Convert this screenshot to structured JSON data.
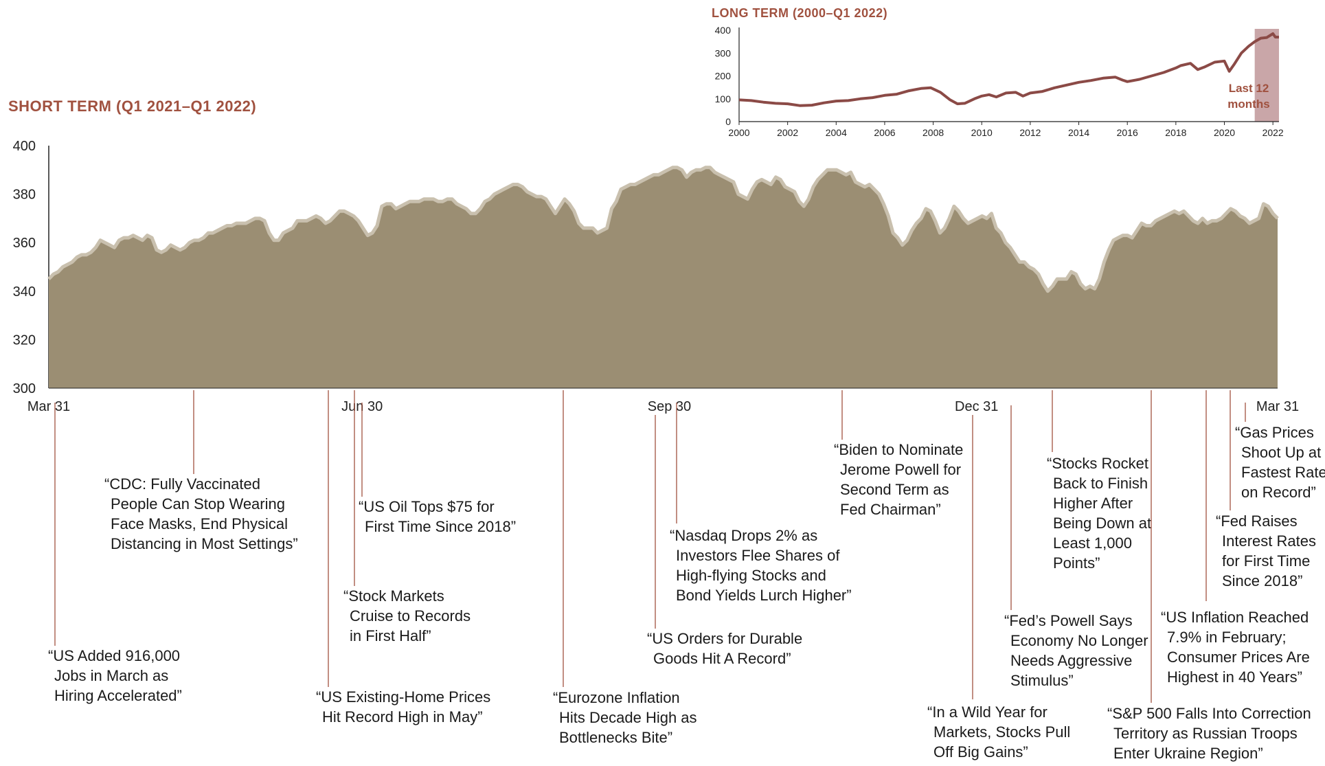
{
  "colors": {
    "area": "#9b8e73",
    "area_edge": "#c9c0ae",
    "line": "#8b4a46",
    "highlight": "#c9a6a8",
    "title": "#a0513f",
    "leader": "#a0513f"
  },
  "chart_data": [
    {
      "type": "area",
      "title": "SHORT TERM (Q1 2021–Q1 2022)",
      "ylim": [
        300,
        400
      ],
      "yticks": [
        300,
        320,
        340,
        360,
        380,
        400
      ],
      "x_labels": [
        "Mar 31",
        "Jun 30",
        "Sep 30",
        "Dec 31",
        "Mar 31"
      ],
      "x_label_pos": [
        0,
        0.255,
        0.505,
        0.755,
        1.0
      ],
      "values": [
        345,
        347,
        348,
        350,
        351,
        352,
        354,
        355,
        355,
        356,
        358,
        361,
        360,
        359,
        358,
        361,
        362,
        362,
        363,
        362,
        361,
        363,
        362,
        357,
        356,
        357,
        359,
        358,
        357,
        358,
        360,
        361,
        361,
        362,
        364,
        364,
        365,
        366,
        367,
        367,
        368,
        368,
        368,
        369,
        370,
        370,
        369,
        364,
        361,
        361,
        364,
        365,
        366,
        369,
        369,
        369,
        370,
        371,
        370,
        368,
        369,
        371,
        373,
        373,
        372,
        371,
        369,
        366,
        363,
        364,
        367,
        375,
        376,
        376,
        374,
        375,
        376,
        377,
        377,
        377,
        378,
        378,
        378,
        377,
        377,
        378,
        378,
        376,
        375,
        374,
        372,
        372,
        374,
        377,
        378,
        380,
        381,
        382,
        383,
        384,
        384,
        383,
        381,
        380,
        379,
        379,
        378,
        375,
        372,
        375,
        378,
        376,
        373,
        368,
        366,
        366,
        366,
        364,
        365,
        366,
        374,
        377,
        382,
        383,
        384,
        384,
        385,
        386,
        387,
        388,
        388,
        389,
        390,
        391,
        391,
        390,
        387,
        389,
        390,
        390,
        391,
        391,
        389,
        388,
        387,
        386,
        385,
        380,
        379,
        378,
        382,
        385,
        386,
        385,
        384,
        387,
        386,
        383,
        382,
        381,
        377,
        375,
        378,
        383,
        386,
        388,
        390,
        390,
        390,
        389,
        388,
        389,
        385,
        384,
        383,
        384,
        382,
        380,
        376,
        371,
        364,
        362,
        359,
        361,
        365,
        368,
        370,
        374,
        373,
        369,
        364,
        366,
        370,
        375,
        373,
        370,
        368,
        369,
        370,
        371,
        370,
        372,
        366,
        364,
        360,
        358,
        355,
        352,
        352,
        350,
        349,
        347,
        343,
        340,
        342,
        345,
        345,
        345,
        348,
        347,
        343,
        341,
        342,
        341,
        345,
        352,
        357,
        361,
        362,
        363,
        363,
        362,
        365,
        368,
        367,
        367,
        369,
        370,
        371,
        372,
        373,
        372,
        373,
        371,
        369,
        368,
        370,
        368,
        369,
        369,
        370,
        372,
        374,
        373,
        371,
        370,
        368,
        369,
        370,
        376,
        375,
        372,
        370
      ]
    },
    {
      "type": "line",
      "title": "LONG TERM (2000–Q1 2022)",
      "ylim": [
        0,
        400
      ],
      "yticks": [
        0,
        100,
        200,
        300,
        400
      ],
      "xlim": [
        2000,
        2022.25
      ],
      "xticks": [
        "2000",
        "2002",
        "2004",
        "2006",
        "2008",
        "2010",
        "2012",
        "2014",
        "2016",
        "2018",
        "2020",
        "2022"
      ],
      "highlight_range": [
        2021.25,
        2022.25
      ],
      "highlight_label": [
        "Last 12",
        "months"
      ],
      "points": [
        [
          2000,
          95
        ],
        [
          2000.5,
          92
        ],
        [
          2001,
          85
        ],
        [
          2001.5,
          80
        ],
        [
          2002,
          78
        ],
        [
          2002.5,
          70
        ],
        [
          2003,
          72
        ],
        [
          2003.5,
          82
        ],
        [
          2004,
          90
        ],
        [
          2004.5,
          92
        ],
        [
          2005,
          100
        ],
        [
          2005.5,
          105
        ],
        [
          2006,
          115
        ],
        [
          2006.5,
          120
        ],
        [
          2007,
          135
        ],
        [
          2007.5,
          145
        ],
        [
          2007.9,
          148
        ],
        [
          2008.3,
          128
        ],
        [
          2008.7,
          95
        ],
        [
          2009,
          78
        ],
        [
          2009.3,
          80
        ],
        [
          2009.7,
          100
        ],
        [
          2010,
          112
        ],
        [
          2010.3,
          118
        ],
        [
          2010.6,
          108
        ],
        [
          2011,
          125
        ],
        [
          2011.4,
          128
        ],
        [
          2011.7,
          112
        ],
        [
          2012,
          125
        ],
        [
          2012.5,
          132
        ],
        [
          2013,
          148
        ],
        [
          2013.5,
          160
        ],
        [
          2014,
          172
        ],
        [
          2014.5,
          180
        ],
        [
          2015,
          190
        ],
        [
          2015.5,
          195
        ],
        [
          2015.8,
          182
        ],
        [
          2016,
          175
        ],
        [
          2016.5,
          185
        ],
        [
          2017,
          200
        ],
        [
          2017.5,
          215
        ],
        [
          2018,
          235
        ],
        [
          2018.2,
          245
        ],
        [
          2018.6,
          255
        ],
        [
          2018.9,
          228
        ],
        [
          2019.2,
          240
        ],
        [
          2019.6,
          260
        ],
        [
          2020,
          265
        ],
        [
          2020.2,
          220
        ],
        [
          2020.4,
          250
        ],
        [
          2020.7,
          300
        ],
        [
          2021,
          330
        ],
        [
          2021.25,
          350
        ],
        [
          2021.5,
          365
        ],
        [
          2021.75,
          368
        ],
        [
          2022,
          385
        ],
        [
          2022.1,
          370
        ],
        [
          2022.25,
          370
        ]
      ]
    }
  ],
  "annotations": [
    {
      "text": [
        "“US Added 916,000",
        "Jobs in March as",
        "Hiring Accelerated”"
      ]
    },
    {
      "text": [
        "“CDC: Fully Vaccinated",
        "People Can Stop Wearing",
        "Face Masks, End Physical",
        "Distancing in Most Settings”"
      ]
    },
    {
      "text": [
        "“US Existing-Home Prices",
        "Hit Record High in May”"
      ]
    },
    {
      "text": [
        "“Stock Markets",
        "Cruise to Records",
        "in First Half”"
      ]
    },
    {
      "text": [
        "“US Oil Tops $75 for",
        "First Time Since 2018”"
      ]
    },
    {
      "text": [
        "“Eurozone Inflation",
        "Hits Decade High as",
        "Bottlenecks Bite”"
      ]
    },
    {
      "text": [
        "“US Orders for Durable",
        "Goods Hit A Record”"
      ]
    },
    {
      "text": [
        "“Nasdaq Drops 2% as",
        "Investors Flee Shares of",
        "High-flying Stocks and",
        "Bond Yields Lurch Higher”"
      ]
    },
    {
      "text": [
        "“Biden to Nominate",
        "Jerome Powell for",
        "Second Term as",
        "Fed Chairman”"
      ]
    },
    {
      "text": [
        "“In a Wild Year for",
        "Markets, Stocks Pull",
        "Off Big Gains”"
      ]
    },
    {
      "text": [
        "“Fed’s Powell Says",
        "Economy No Longer",
        "Needs Aggressive",
        "Stimulus”"
      ]
    },
    {
      "text": [
        "“Stocks Rocket",
        "Back to Finish",
        "Higher After",
        "Being Down at",
        "Least 1,000",
        "Points”"
      ]
    },
    {
      "text": [
        "“S&P 500 Falls Into Correction",
        "Territory as Russian Troops",
        "Enter Ukraine Region”"
      ]
    },
    {
      "text": [
        "“US Inflation Reached",
        "7.9% in February;",
        "Consumer Prices Are",
        "Highest in 40 Years”"
      ]
    },
    {
      "text": [
        "“Fed Raises",
        "Interest Rates",
        "for First Time",
        "Since 2018”"
      ]
    },
    {
      "text": [
        "“Gas Prices",
        "Shoot Up at",
        "Fastest Rate",
        "on Record”"
      ]
    }
  ]
}
